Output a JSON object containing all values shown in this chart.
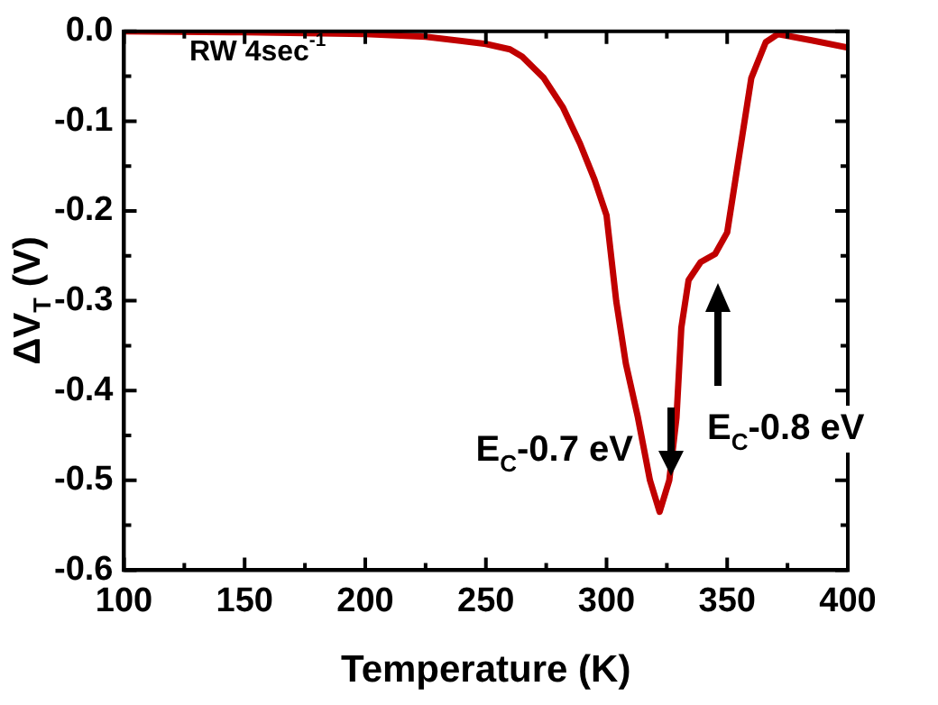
{
  "chart_data": {
    "type": "line",
    "xlabel": "Temperature (K)",
    "ylabel": "ΔV$_{T}$ (V)",
    "xlim": [
      100,
      400
    ],
    "xticks": [
      100,
      150,
      200,
      250,
      300,
      350,
      400
    ],
    "ylim": [
      -0.6,
      0
    ],
    "yticks": [
      {
        "value": -0.6,
        "label": "-0.6"
      },
      {
        "value": -0.5,
        "label": "-0.5"
      },
      {
        "value": -0.4,
        "label": "-0.4"
      },
      {
        "value": -0.3,
        "label": "-0.3"
      },
      {
        "value": -0.2,
        "label": "-0.2"
      },
      {
        "value": -0.1,
        "label": "-0.1"
      },
      {
        "value": 0,
        "label": "0.0"
      }
    ],
    "grid": false,
    "legend": false,
    "marker": "none",
    "line_style": "solid",
    "annotations": [
      "RW 4sec$^{-1}$",
      "E$_{C}$-0.7 eV",
      "E$_{C}$-0.8 eV"
    ],
    "series": [
      {
        "color": "#c00000",
        "x": [
          100,
          150,
          200,
          225,
          250,
          260,
          265,
          274,
          282,
          289,
          295,
          300,
          304,
          308,
          313,
          318,
          322,
          326,
          329,
          331,
          334,
          339,
          345,
          350,
          355,
          360,
          366,
          371,
          385,
          400
        ],
        "values": [
          0,
          -0.001,
          -0.003,
          -0.006,
          -0.014,
          -0.02,
          -0.028,
          -0.052,
          -0.085,
          -0.125,
          -0.165,
          -0.205,
          -0.3,
          -0.37,
          -0.43,
          -0.5,
          -0.535,
          -0.5,
          -0.43,
          -0.33,
          -0.277,
          -0.257,
          -0.248,
          -0.224,
          -0.138,
          -0.052,
          -0.012,
          -0.003,
          -0.01,
          -0.018
        ]
      }
    ]
  }
}
